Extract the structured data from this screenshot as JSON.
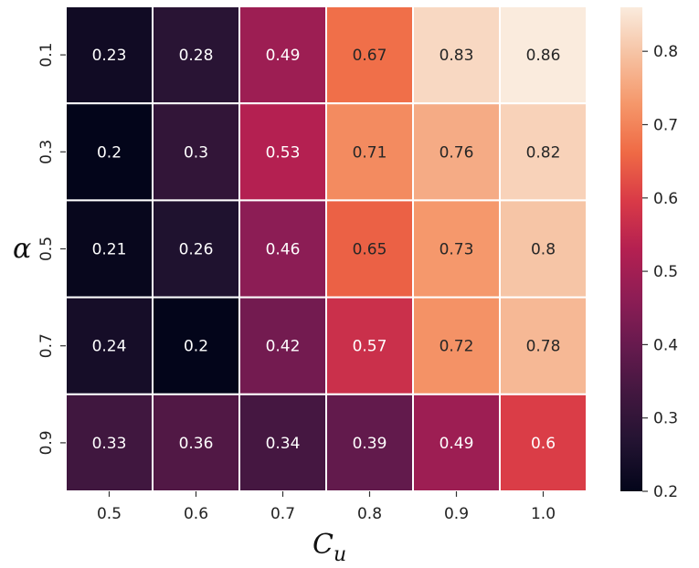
{
  "chart_data": {
    "type": "heatmap",
    "title": "",
    "xlabel": "C",
    "xlabel_subscript": "u",
    "ylabel": "α",
    "x_categories": [
      "0.5",
      "0.6",
      "0.7",
      "0.8",
      "0.9",
      "1.0"
    ],
    "y_categories": [
      "0.1",
      "0.3",
      "0.5",
      "0.7",
      "0.9"
    ],
    "values": [
      [
        0.23,
        0.28,
        0.49,
        0.67,
        0.83,
        0.86
      ],
      [
        0.2,
        0.3,
        0.53,
        0.71,
        0.76,
        0.82
      ],
      [
        0.21,
        0.26,
        0.46,
        0.65,
        0.73,
        0.8
      ],
      [
        0.24,
        0.2,
        0.42,
        0.57,
        0.72,
        0.78
      ],
      [
        0.33,
        0.36,
        0.34,
        0.39,
        0.49,
        0.6
      ]
    ],
    "annotations": [
      [
        "0.23",
        "0.28",
        "0.49",
        "0.67",
        "0.83",
        "0.86"
      ],
      [
        "0.2",
        "0.3",
        "0.53",
        "0.71",
        "0.76",
        "0.82"
      ],
      [
        "0.21",
        "0.26",
        "0.46",
        "0.65",
        "0.73",
        "0.8"
      ],
      [
        "0.24",
        "0.2",
        "0.42",
        "0.57",
        "0.72",
        "0.78"
      ],
      [
        "0.33",
        "0.36",
        "0.34",
        "0.39",
        "0.49",
        "0.6"
      ]
    ],
    "colorbar": {
      "min": 0.2,
      "max": 0.86,
      "ticks": [
        0.2,
        0.3,
        0.4,
        0.5,
        0.6,
        0.7,
        0.8
      ],
      "tick_labels": [
        "0.2",
        "0.3",
        "0.4",
        "0.5",
        "0.6",
        "0.7",
        "0.8"
      ],
      "colormap": "rocket"
    }
  }
}
